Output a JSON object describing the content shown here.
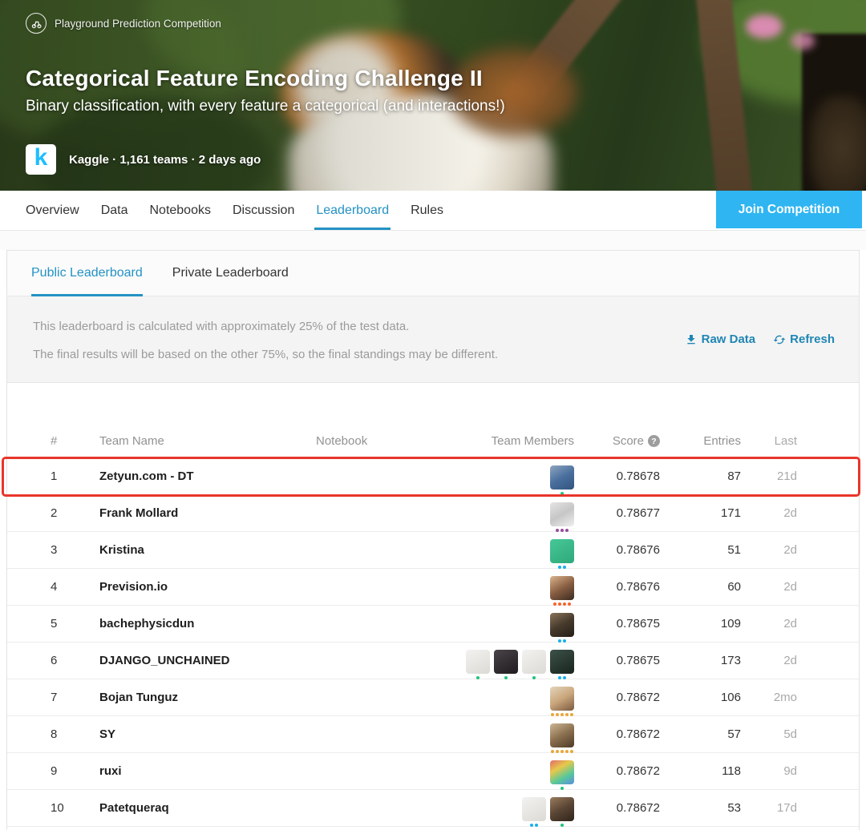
{
  "colors": {
    "accent_blue": "#2492c4",
    "join_blue": "#2fb5f2",
    "highlight_red": "#e8352b",
    "kaggle_logo_blue": "#20beff"
  },
  "hero": {
    "category": "Playground Prediction Competition",
    "title": "Categorical Feature Encoding Challenge II",
    "subtitle": "Binary classification, with every feature a categorical (and interactions!)",
    "org": "Kaggle",
    "meta": "Kaggle · 1,161 teams · 2 days ago",
    "logo_letter": "k"
  },
  "nav": {
    "items": [
      {
        "label": "Overview",
        "active": false
      },
      {
        "label": "Data",
        "active": false
      },
      {
        "label": "Notebooks",
        "active": false
      },
      {
        "label": "Discussion",
        "active": false
      },
      {
        "label": "Leaderboard",
        "active": true
      },
      {
        "label": "Rules",
        "active": false
      }
    ],
    "join_label": "Join Competition"
  },
  "leaderboard_tabs": {
    "public": "Public Leaderboard",
    "private": "Private Leaderboard"
  },
  "info": {
    "line1": "This leaderboard is calculated with approximately 25% of the test data.",
    "line2": "The final results will be based on the other 75%, so the final standings may be different.",
    "raw_data_label": "Raw Data",
    "refresh_label": "Refresh"
  },
  "tiers": {
    "novice": {
      "color": "#1fc47c",
      "count": 1
    },
    "contributor": {
      "color": "#18b0ee",
      "count": 2
    },
    "expert": {
      "color": "#9a4a9e",
      "count": 3
    },
    "master": {
      "color": "#f9632a",
      "count": 4
    },
    "grandmaster": {
      "color": "#e9a83a",
      "count": 5
    }
  },
  "table": {
    "headers": {
      "rank": "#",
      "team": "Team Name",
      "notebook": "Notebook",
      "members": "Team Members",
      "score": "Score",
      "entries": "Entries",
      "last": "Last"
    },
    "rows": [
      {
        "rank": "1",
        "team": "Zetyun.com - DT",
        "score": "0.78678",
        "entries": "87",
        "last": "21d",
        "highlighted": true,
        "members": [
          {
            "tier": "novice",
            "colors": [
              "#8fa6bf",
              "#4a6f9e",
              "#32557e"
            ]
          }
        ]
      },
      {
        "rank": "2",
        "team": "Frank Mollard",
        "score": "0.78677",
        "entries": "171",
        "last": "2d",
        "highlighted": false,
        "members": [
          {
            "tier": "expert",
            "colors": [
              "#e4e4e4",
              "#c6c6c6",
              "#f0f0f0"
            ]
          }
        ]
      },
      {
        "rank": "3",
        "team": "Kristina",
        "score": "0.78676",
        "entries": "51",
        "last": "2d",
        "highlighted": false,
        "members": [
          {
            "tier": "contributor",
            "colors": [
              "#47c898",
              "#2ea87a"
            ]
          }
        ]
      },
      {
        "rank": "4",
        "team": "Prevision.io",
        "score": "0.78676",
        "entries": "60",
        "last": "2d",
        "highlighted": false,
        "members": [
          {
            "tier": "master",
            "colors": [
              "#d9b58e",
              "#8a5f43",
              "#3a2b20"
            ]
          }
        ]
      },
      {
        "rank": "5",
        "team": "bachephysicdun",
        "score": "0.78675",
        "entries": "109",
        "last": "2d",
        "highlighted": false,
        "members": [
          {
            "tier": "contributor",
            "colors": [
              "#8a7458",
              "#463a2c",
              "#241e16"
            ]
          }
        ]
      },
      {
        "rank": "6",
        "team": "DJANGO_UNCHAINED",
        "score": "0.78675",
        "entries": "173",
        "last": "2d",
        "highlighted": false,
        "members": [
          {
            "tier": "novice",
            "colors": [
              "#f2f2f0",
              "#dcdad5"
            ]
          },
          {
            "tier": "novice",
            "colors": [
              "#4a4448",
              "#1f1b1e"
            ]
          },
          {
            "tier": "novice",
            "colors": [
              "#f2f2f0",
              "#dcdad5"
            ]
          },
          {
            "tier": "contributor",
            "colors": [
              "#3c5248",
              "#18241e"
            ]
          }
        ]
      },
      {
        "rank": "7",
        "team": "Bojan Tunguz",
        "score": "0.78672",
        "entries": "106",
        "last": "2mo",
        "highlighted": false,
        "members": [
          {
            "tier": "grandmaster",
            "colors": [
              "#e3d5bd",
              "#caa67c",
              "#7a5a40"
            ]
          }
        ]
      },
      {
        "rank": "8",
        "team": "SY",
        "score": "0.78672",
        "entries": "57",
        "last": "5d",
        "highlighted": false,
        "members": [
          {
            "tier": "grandmaster",
            "colors": [
              "#cdb694",
              "#8a6f4e",
              "#4e3a28"
            ]
          }
        ]
      },
      {
        "rank": "9",
        "team": "ruxi",
        "score": "0.78672",
        "entries": "118",
        "last": "9d",
        "highlighted": false,
        "members": [
          {
            "tier": "novice",
            "colors": [
              "#e06c6c",
              "#e8c84a",
              "#58c89a",
              "#5a8ce0"
            ]
          }
        ]
      },
      {
        "rank": "10",
        "team": "Patetqueraq",
        "score": "0.78672",
        "entries": "53",
        "last": "17d",
        "highlighted": false,
        "members": [
          {
            "tier": "contributor",
            "colors": [
              "#f2f2f0",
              "#dcdad5"
            ]
          },
          {
            "tier": "novice",
            "colors": [
              "#9a7c5e",
              "#5a4534",
              "#2e241a"
            ]
          }
        ]
      }
    ]
  }
}
